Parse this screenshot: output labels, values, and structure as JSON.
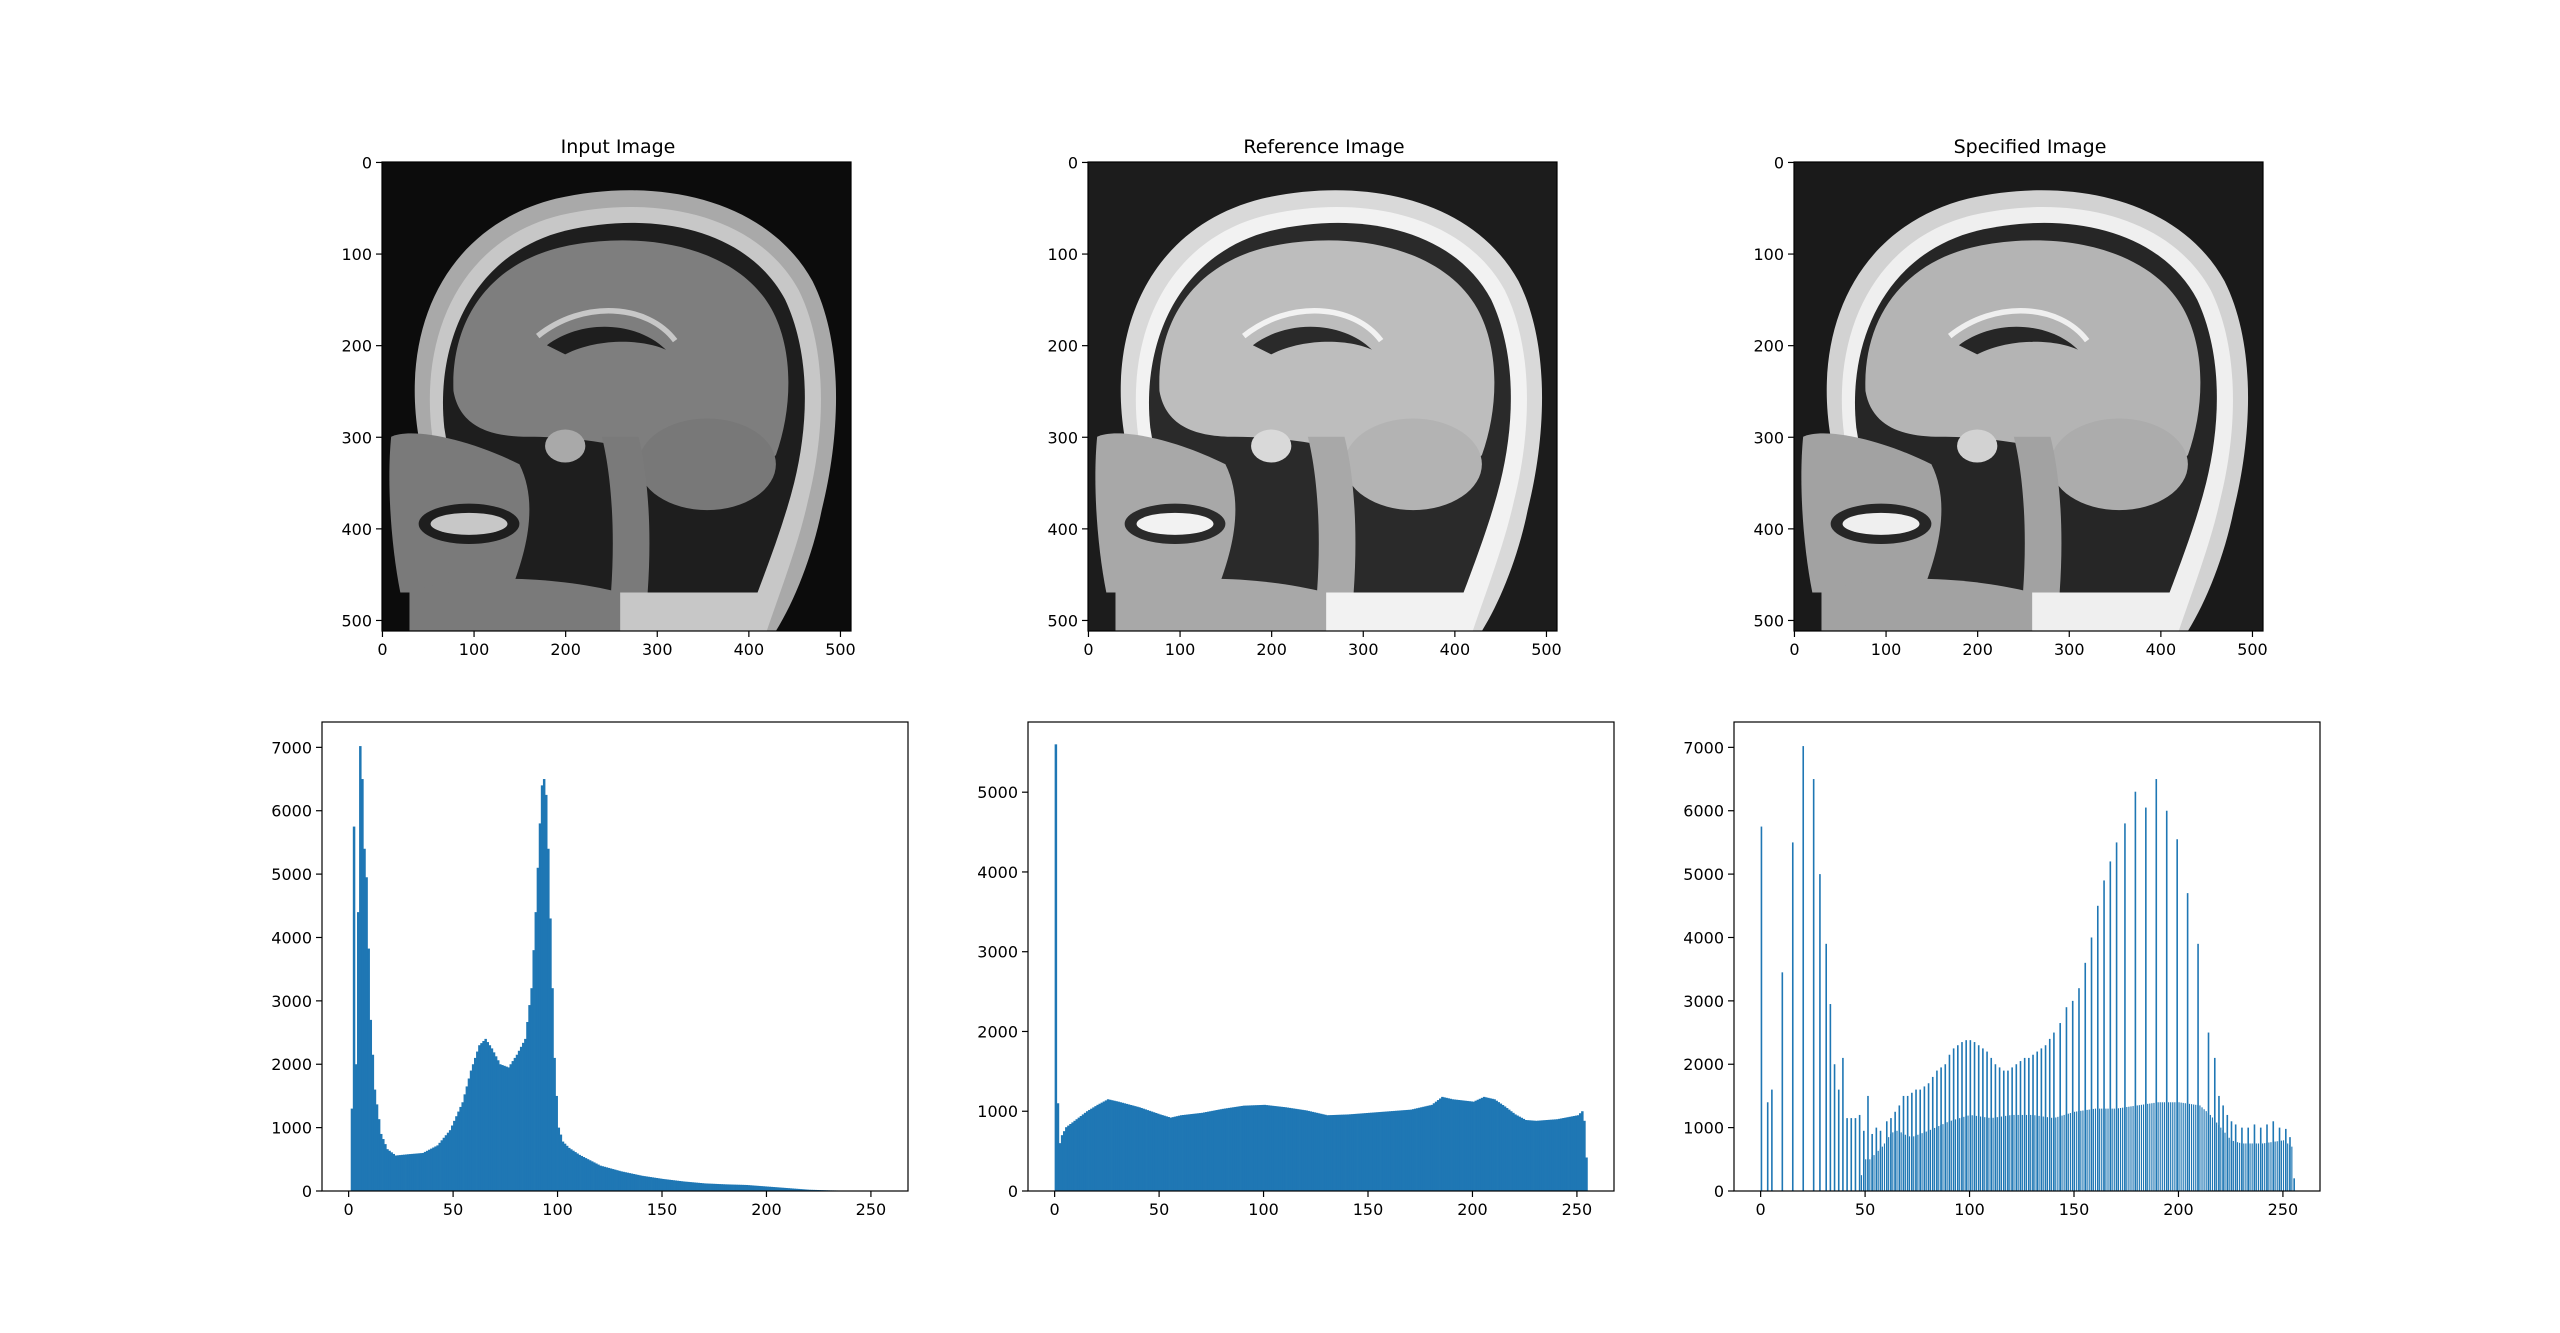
{
  "figure": {
    "background": "#ffffff",
    "bar_color": "#1f77b4",
    "axis_color": "#000000"
  },
  "chart_data": [
    {
      "type": "image",
      "title": "Input Image",
      "content": "sagittal brain MRI, low contrast",
      "xticks": [
        0,
        100,
        200,
        300,
        400,
        500
      ],
      "yticks": [
        0,
        100,
        200,
        300,
        400,
        500
      ],
      "xlim": [
        0,
        511
      ],
      "ylim": [
        511,
        0
      ]
    },
    {
      "type": "image",
      "title": "Reference Image",
      "content": "sagittal brain MRI, high contrast",
      "xticks": [
        0,
        100,
        200,
        300,
        400,
        500
      ],
      "yticks": [
        0,
        100,
        200,
        300,
        400,
        500
      ],
      "xlim": [
        0,
        511
      ],
      "ylim": [
        511,
        0
      ]
    },
    {
      "type": "image",
      "title": "Specified Image",
      "content": "sagittal brain MRI after histogram specification",
      "xticks": [
        0,
        100,
        200,
        300,
        400,
        500
      ],
      "yticks": [
        0,
        100,
        200,
        300,
        400,
        500
      ],
      "xlim": [
        0,
        511
      ],
      "ylim": [
        511,
        0
      ]
    },
    {
      "type": "bar",
      "title": "",
      "xlim": [
        -12.75,
        267.75
      ],
      "ylim": [
        0,
        7400
      ],
      "xticks": [
        0,
        50,
        100,
        150,
        200,
        250
      ],
      "yticks": [
        0,
        1000,
        2000,
        3000,
        4000,
        5000,
        6000,
        7000
      ],
      "points": [
        [
          0,
          0
        ],
        [
          1,
          1300
        ],
        [
          2,
          5750
        ],
        [
          3,
          2000
        ],
        [
          4,
          4400
        ],
        [
          5,
          7020
        ],
        [
          6,
          6500
        ],
        [
          7,
          5400
        ],
        [
          8,
          4950
        ],
        [
          10,
          2700
        ],
        [
          12,
          1600
        ],
        [
          15,
          900
        ],
        [
          18,
          660
        ],
        [
          22,
          560
        ],
        [
          28,
          580
        ],
        [
          35,
          600
        ],
        [
          42,
          720
        ],
        [
          48,
          960
        ],
        [
          54,
          1400
        ],
        [
          58,
          1900
        ],
        [
          62,
          2300
        ],
        [
          65,
          2400
        ],
        [
          68,
          2250
        ],
        [
          72,
          2000
        ],
        [
          76,
          1950
        ],
        [
          80,
          2150
        ],
        [
          84,
          2400
        ],
        [
          87,
          3200
        ],
        [
          89,
          4400
        ],
        [
          91,
          5800
        ],
        [
          92,
          6400
        ],
        [
          93,
          6500
        ],
        [
          94,
          6250
        ],
        [
          95,
          5400
        ],
        [
          96,
          4300
        ],
        [
          97,
          3200
        ],
        [
          98,
          2100
        ],
        [
          99,
          1500
        ],
        [
          100,
          1000
        ],
        [
          102,
          780
        ],
        [
          105,
          680
        ],
        [
          110,
          570
        ],
        [
          120,
          400
        ],
        [
          130,
          310
        ],
        [
          140,
          240
        ],
        [
          150,
          190
        ],
        [
          160,
          150
        ],
        [
          170,
          120
        ],
        [
          180,
          105
        ],
        [
          190,
          95
        ],
        [
          200,
          70
        ],
        [
          210,
          45
        ],
        [
          220,
          20
        ],
        [
          230,
          10
        ],
        [
          240,
          5
        ],
        [
          255,
          0
        ]
      ]
    },
    {
      "type": "bar",
      "title": "",
      "xlim": [
        -12.75,
        267.75
      ],
      "ylim": [
        0,
        5880
      ],
      "xticks": [
        0,
        50,
        100,
        150,
        200,
        250
      ],
      "yticks": [
        0,
        1000,
        2000,
        3000,
        4000,
        5000
      ],
      "points": [
        [
          0,
          5600
        ],
        [
          1,
          1100
        ],
        [
          2,
          600
        ],
        [
          3,
          700
        ],
        [
          5,
          800
        ],
        [
          10,
          900
        ],
        [
          15,
          1000
        ],
        [
          20,
          1080
        ],
        [
          25,
          1150
        ],
        [
          30,
          1120
        ],
        [
          40,
          1050
        ],
        [
          50,
          960
        ],
        [
          55,
          920
        ],
        [
          60,
          950
        ],
        [
          70,
          980
        ],
        [
          80,
          1030
        ],
        [
          90,
          1070
        ],
        [
          100,
          1080
        ],
        [
          110,
          1050
        ],
        [
          120,
          1010
        ],
        [
          130,
          950
        ],
        [
          140,
          960
        ],
        [
          150,
          980
        ],
        [
          160,
          1000
        ],
        [
          170,
          1020
        ],
        [
          180,
          1080
        ],
        [
          185,
          1180
        ],
        [
          190,
          1150
        ],
        [
          200,
          1120
        ],
        [
          205,
          1180
        ],
        [
          210,
          1150
        ],
        [
          215,
          1060
        ],
        [
          220,
          960
        ],
        [
          225,
          890
        ],
        [
          230,
          880
        ],
        [
          240,
          900
        ],
        [
          250,
          950
        ],
        [
          252,
          1000
        ],
        [
          253,
          880
        ],
        [
          254,
          420
        ],
        [
          255,
          0
        ]
      ]
    },
    {
      "type": "bar",
      "title": "",
      "xlim": [
        -12.75,
        267.75
      ],
      "ylim": [
        0,
        7400
      ],
      "xticks": [
        0,
        50,
        100,
        150,
        200,
        250
      ],
      "yticks": [
        0,
        1000,
        2000,
        3000,
        4000,
        5000,
        6000,
        7000
      ],
      "spikes": [
        [
          0,
          5750
        ],
        [
          3,
          1400
        ],
        [
          5,
          1600
        ],
        [
          10,
          3450
        ],
        [
          15,
          5500
        ],
        [
          20,
          7020
        ],
        [
          25,
          6500
        ],
        [
          28,
          5000
        ],
        [
          31,
          3900
        ],
        [
          33,
          2950
        ],
        [
          35,
          2000
        ],
        [
          37,
          1600
        ],
        [
          39,
          2100
        ],
        [
          41,
          1150
        ],
        [
          43,
          1150
        ],
        [
          45,
          1150
        ],
        [
          47,
          1200
        ],
        [
          49,
          950
        ],
        [
          51,
          1500
        ],
        [
          53,
          900
        ],
        [
          55,
          1000
        ],
        [
          57,
          950
        ],
        [
          60,
          1100
        ],
        [
          62,
          1150
        ],
        [
          64,
          1250
        ],
        [
          66,
          1350
        ],
        [
          68,
          1500
        ],
        [
          70,
          1500
        ],
        [
          72,
          1550
        ],
        [
          74,
          1600
        ],
        [
          76,
          1600
        ],
        [
          78,
          1650
        ],
        [
          80,
          1700
        ],
        [
          82,
          1800
        ],
        [
          84,
          1900
        ],
        [
          86,
          1950
        ],
        [
          88,
          2000
        ],
        [
          90,
          2150
        ],
        [
          92,
          2250
        ],
        [
          94,
          2300
        ],
        [
          96,
          2350
        ],
        [
          98,
          2380
        ],
        [
          100,
          2380
        ],
        [
          102,
          2350
        ],
        [
          104,
          2300
        ],
        [
          106,
          2250
        ],
        [
          108,
          2200
        ],
        [
          110,
          2100
        ],
        [
          112,
          2000
        ],
        [
          114,
          1950
        ],
        [
          116,
          1900
        ],
        [
          118,
          1900
        ],
        [
          120,
          1950
        ],
        [
          122,
          2000
        ],
        [
          124,
          2050
        ],
        [
          126,
          2100
        ],
        [
          128,
          2100
        ],
        [
          130,
          2150
        ],
        [
          132,
          2200
        ],
        [
          134,
          2250
        ],
        [
          136,
          2300
        ],
        [
          138,
          2400
        ],
        [
          140,
          2500
        ],
        [
          143,
          2650
        ],
        [
          146,
          2900
        ],
        [
          149,
          3000
        ],
        [
          152,
          3200
        ],
        [
          155,
          3600
        ],
        [
          158,
          4000
        ],
        [
          161,
          4500
        ],
        [
          164,
          4900
        ],
        [
          167,
          5200
        ],
        [
          170,
          5500
        ],
        [
          174,
          5800
        ],
        [
          179,
          6300
        ],
        [
          184,
          6050
        ],
        [
          189,
          6500
        ],
        [
          194,
          6000
        ],
        [
          199,
          5550
        ],
        [
          204,
          4700
        ],
        [
          209,
          3900
        ],
        [
          214,
          2500
        ],
        [
          217,
          2100
        ],
        [
          219,
          1500
        ],
        [
          221,
          1350
        ],
        [
          223,
          1200
        ],
        [
          225,
          1100
        ],
        [
          227,
          1050
        ],
        [
          230,
          1000
        ],
        [
          233,
          1000
        ],
        [
          236,
          1050
        ],
        [
          239,
          1000
        ],
        [
          242,
          1050
        ],
        [
          245,
          1100
        ],
        [
          248,
          1000
        ],
        [
          251,
          980
        ],
        [
          253,
          850
        ],
        [
          255,
          200
        ]
      ],
      "dense": [
        [
          41,
          0
        ],
        [
          47,
          0
        ],
        [
          49,
          500
        ],
        [
          52,
          500
        ],
        [
          55,
          600
        ],
        [
          58,
          700
        ],
        [
          62,
          900
        ],
        [
          64,
          950
        ],
        [
          66,
          950
        ],
        [
          68,
          900
        ],
        [
          72,
          850
        ],
        [
          76,
          900
        ],
        [
          80,
          950
        ],
        [
          90,
          1100
        ],
        [
          100,
          1200
        ],
        [
          110,
          1150
        ],
        [
          120,
          1200
        ],
        [
          130,
          1200
        ],
        [
          140,
          1150
        ],
        [
          150,
          1250
        ],
        [
          160,
          1300
        ],
        [
          170,
          1300
        ],
        [
          180,
          1350
        ],
        [
          190,
          1400
        ],
        [
          200,
          1400
        ],
        [
          210,
          1350
        ],
        [
          215,
          1200
        ],
        [
          220,
          1000
        ],
        [
          225,
          800
        ],
        [
          230,
          750
        ],
        [
          240,
          750
        ],
        [
          250,
          800
        ],
        [
          254,
          700
        ],
        [
          255,
          0
        ]
      ]
    }
  ]
}
